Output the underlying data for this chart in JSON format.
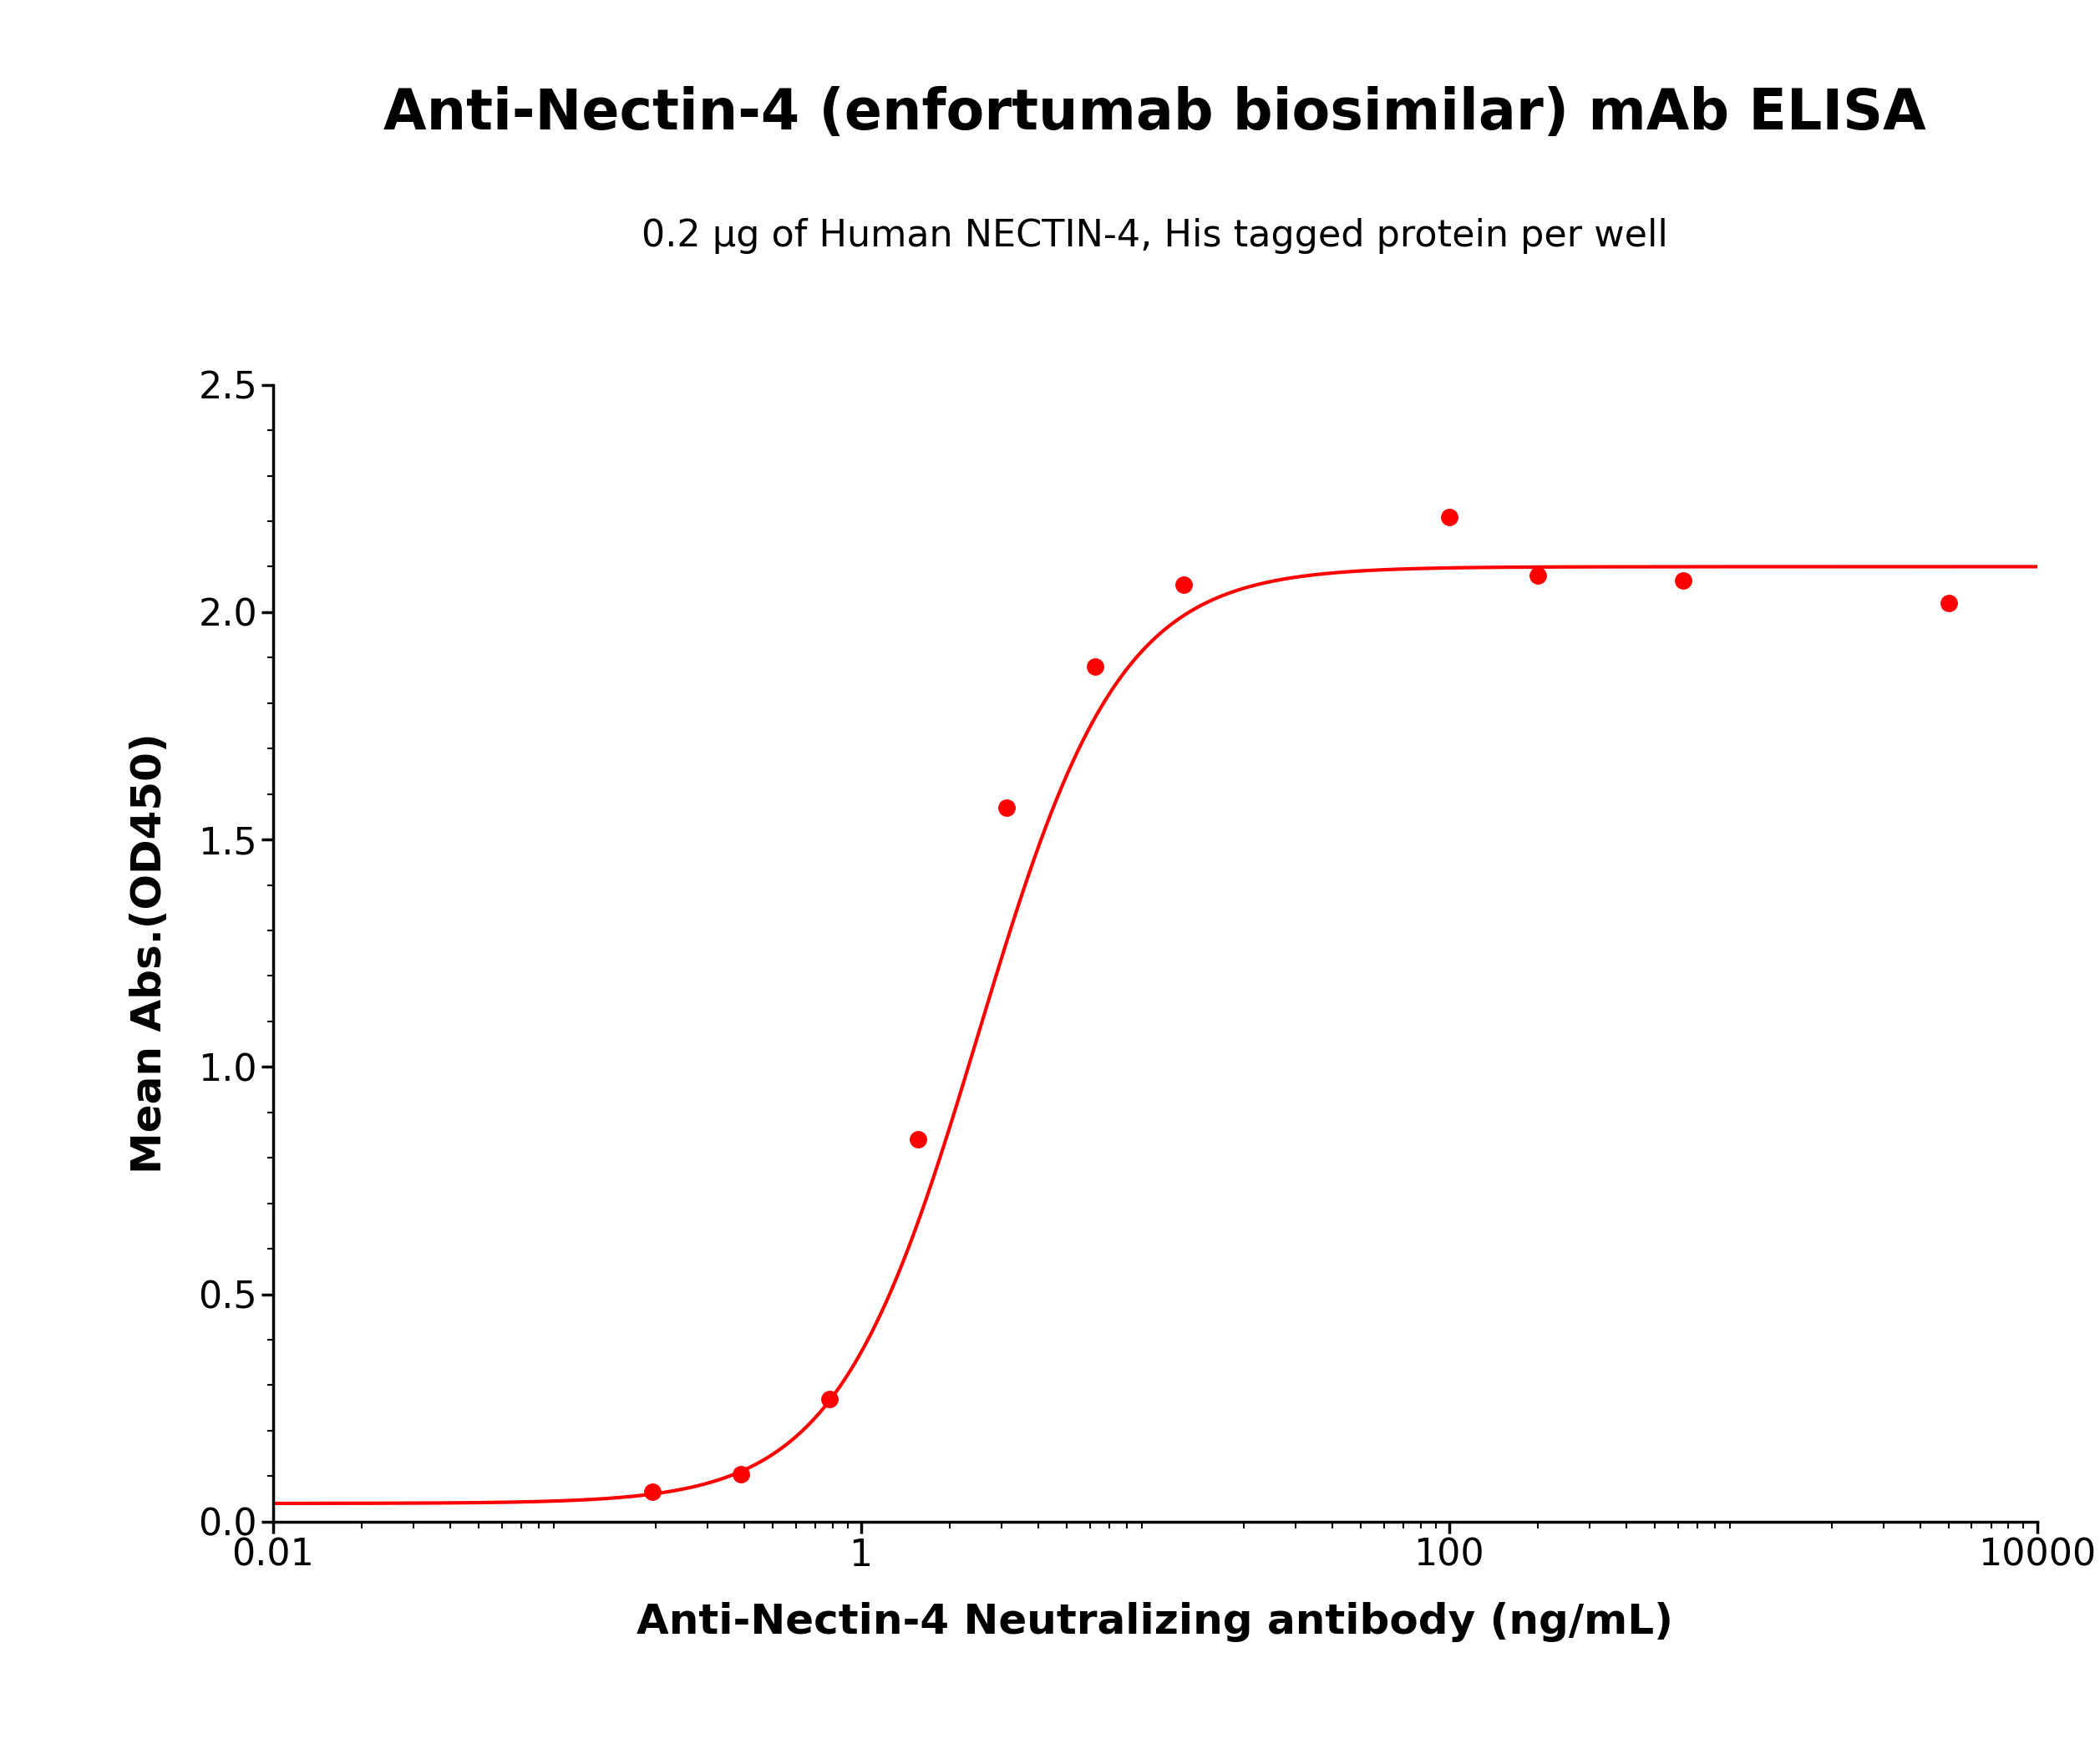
{
  "title": "Anti-Nectin-4 (enfortumab biosimilar) mAb ELISA",
  "subtitle": "0.2 μg of Human NECTIN-4, His tagged protein per well",
  "xlabel": "Anti-Nectin-4 Neutralizing antibody (ng/mL)",
  "ylabel": "Mean Abs.(OD450)",
  "x_data": [
    0.195,
    0.391,
    0.781,
    1.563,
    3.125,
    6.25,
    12.5,
    100,
    200,
    625,
    5000
  ],
  "y_data": [
    0.065,
    0.105,
    0.27,
    0.84,
    1.57,
    1.88,
    2.06,
    2.21,
    2.08,
    2.07,
    2.02
  ],
  "xlim": [
    0.01,
    10000
  ],
  "ylim": [
    0.0,
    2.5
  ],
  "color": "#FF0000",
  "marker_size": 14,
  "line_width": 3.0,
  "title_fontsize": 48,
  "subtitle_fontsize": 32,
  "label_fontsize": 36,
  "tick_fontsize": 32,
  "xtick_labels": [
    "0.01",
    "1",
    "100",
    "10000"
  ],
  "xtick_positions": [
    0.01,
    1,
    100,
    10000
  ],
  "ytick_positions": [
    0.0,
    0.5,
    1.0,
    1.5,
    2.0,
    2.5
  ],
  "ytick_labels": [
    "0.0",
    "0.5",
    "1.0",
    "1.5",
    "2.0",
    "2.5"
  ],
  "background_color": "#FFFFFF",
  "ec50_init": 2.5,
  "hill_init": 1.8,
  "top_init": 2.1,
  "bottom_init": 0.04
}
